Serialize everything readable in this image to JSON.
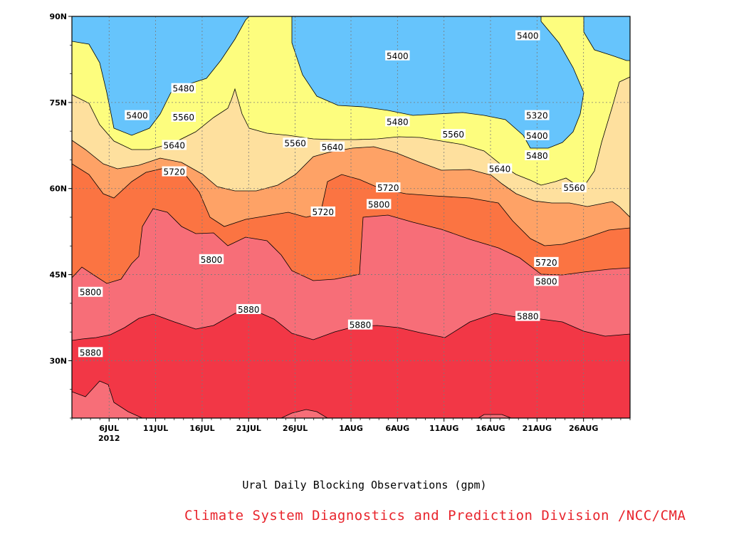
{
  "chart_data": {
    "type": "heatmap",
    "title": "Ural Daily Blocking Observations (gpm)",
    "credit": "Climate System Diagnostics and Prediction Division /NCC/CMA",
    "x_axis": {
      "ticks": [
        "6JUL",
        "11JUL",
        "16JUL",
        "21JUL",
        "26JUL",
        "1AUG",
        "6AUG",
        "11AUG",
        "16AUG",
        "21AUG",
        "26AUG"
      ],
      "year_label": "2012",
      "range": [
        "2012-07-02",
        "2012-08-31"
      ]
    },
    "y_axis": {
      "ticks": [
        "90N",
        "75N",
        "60N",
        "45N",
        "30N"
      ],
      "range": [
        20,
        90
      ],
      "unit": "latitude"
    },
    "contour_levels": [
      5320,
      5400,
      5480,
      5560,
      5640,
      5720,
      5800,
      5880
    ],
    "level_colors": {
      "lt5320": "#4646f0",
      "5320-5400": "#5a8ae6",
      "5400-5480": "#66c4fc",
      "5480-5560": "#fdfd7e",
      "5560-5640": "#fee09e",
      "5640-5720": "#fea266",
      "5720-5800": "#fb7442",
      "5800-5880": "#f76e78",
      "gt5880": "#f23746"
    },
    "contour_labels": [
      {
        "value": "5400",
        "date": "2012-07-09",
        "lat": 72.8
      },
      {
        "value": "5480",
        "date": "2012-07-14",
        "lat": 77.5
      },
      {
        "value": "5560",
        "date": "2012-07-14",
        "lat": 72.5
      },
      {
        "value": "5640",
        "date": "2012-07-13",
        "lat": 67.6
      },
      {
        "value": "5720",
        "date": "2012-07-13",
        "lat": 63.0
      },
      {
        "value": "5800",
        "date": "2012-07-04",
        "lat": 42.0
      },
      {
        "value": "5880",
        "date": "2012-07-04",
        "lat": 31.5
      },
      {
        "value": "5800",
        "date": "2012-07-17",
        "lat": 47.7
      },
      {
        "value": "5880",
        "date": "2012-07-21",
        "lat": 39.0
      },
      {
        "value": "5560",
        "date": "2012-07-26",
        "lat": 68.0
      },
      {
        "value": "5720",
        "date": "2012-07-29",
        "lat": 56.0
      },
      {
        "value": "5640",
        "date": "2012-07-30",
        "lat": 67.3
      },
      {
        "value": "5880",
        "date": "2012-08-02",
        "lat": 36.3
      },
      {
        "value": "5800",
        "date": "2012-08-04",
        "lat": 57.3
      },
      {
        "value": "5720",
        "date": "2012-08-05",
        "lat": 60.2
      },
      {
        "value": "5400",
        "date": "2012-08-06",
        "lat": 83.2
      },
      {
        "value": "5480",
        "date": "2012-08-06",
        "lat": 71.7
      },
      {
        "value": "5560",
        "date": "2012-08-12",
        "lat": 69.5
      },
      {
        "value": "5640",
        "date": "2012-08-17",
        "lat": 63.5
      },
      {
        "value": "5880",
        "date": "2012-08-20",
        "lat": 37.8
      },
      {
        "value": "5400",
        "date": "2012-08-20",
        "lat": 86.7
      },
      {
        "value": "5320",
        "date": "2012-08-21",
        "lat": 72.8
      },
      {
        "value": "5400",
        "date": "2012-08-21",
        "lat": 69.3
      },
      {
        "value": "5480",
        "date": "2012-08-21",
        "lat": 65.8
      },
      {
        "value": "5720",
        "date": "2012-08-22",
        "lat": 47.2
      },
      {
        "value": "5800",
        "date": "2012-08-22",
        "lat": 43.9
      },
      {
        "value": "5560",
        "date": "2012-08-25",
        "lat": 60.2
      }
    ]
  }
}
